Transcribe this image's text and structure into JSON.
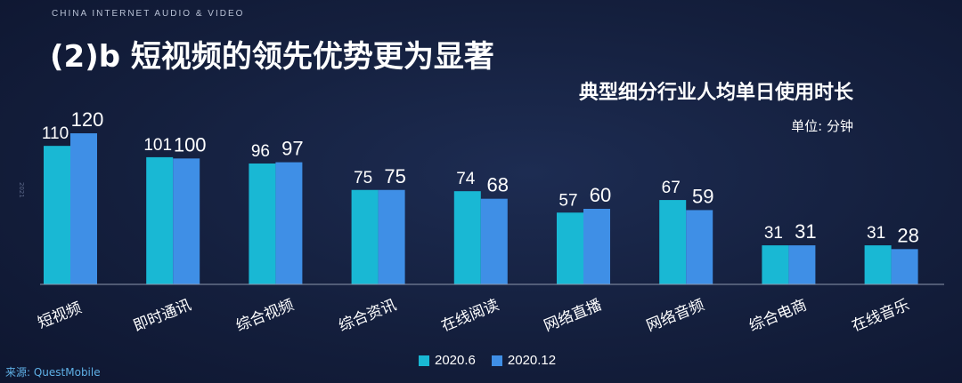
{
  "header": {
    "brand": "CHINA INTERNET AUDIO & VIDEO",
    "title": "(2)b 短视频的领先优势更为显著"
  },
  "side_mark": "2021",
  "source": "来源: QuestMobile",
  "colors": {
    "series_2020_6": "#19b8d4",
    "series_2020_12": "#3f8fe6",
    "axis": "#8d97ad"
  },
  "chart_data": {
    "type": "bar",
    "title": "典型细分行业人均单日使用时长",
    "unit": "单位: 分钟",
    "categories": [
      "短视频",
      "即时通讯",
      "综合视频",
      "综合资讯",
      "在线阅读",
      "网络直播",
      "网络音频",
      "综合电商",
      "在线音乐"
    ],
    "series": [
      {
        "name": "2020.6",
        "values": [
          110,
          101,
          96,
          75,
          74,
          57,
          67,
          31,
          31
        ]
      },
      {
        "name": "2020.12",
        "values": [
          120,
          100,
          97,
          75,
          68,
          60,
          59,
          31,
          28
        ]
      }
    ],
    "ylim": [
      0,
      120
    ],
    "grid": false,
    "legend_position": "bottom-center"
  }
}
